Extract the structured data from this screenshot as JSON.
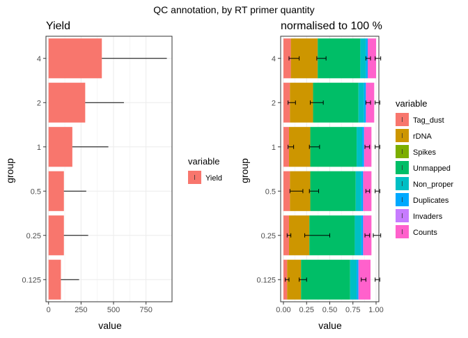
{
  "main_title": "QC annotation, by RT primer quantity",
  "colors": {
    "yield": "#F8766D",
    "Tag_dust": "#F8766D",
    "rDNA": "#CD9600",
    "Spikes": "#7CAE00",
    "Unmapped": "#00BE67",
    "Non_proper": "#00BFC4",
    "Duplicates": "#00A9FF",
    "Invaders": "#C77CFF",
    "Counts": "#FF61CC"
  },
  "chart_data": [
    {
      "type": "bar",
      "orientation": "horizontal",
      "title": "Yield",
      "xlabel": "value",
      "ylabel": "group",
      "xlim": [
        -20,
        950
      ],
      "xticks": [
        "0",
        "250",
        "500",
        "750"
      ],
      "xtick_values": [
        0,
        250,
        500,
        750
      ],
      "categories": [
        "0.125",
        "0.25",
        "0.5",
        "1",
        "2",
        "4"
      ],
      "grid": true,
      "legend": {
        "title": "variable",
        "position": "right",
        "entries": [
          "Yield"
        ]
      },
      "series": [
        {
          "name": "Yield",
          "values": [
            95,
            118,
            118,
            183,
            282,
            410
          ],
          "error_low": [
            95,
            118,
            118,
            183,
            282,
            410
          ],
          "error_high": [
            235,
            305,
            290,
            460,
            580,
            910
          ]
        }
      ]
    },
    {
      "type": "bar",
      "orientation": "horizontal",
      "stacked": true,
      "title": "normalised to 100 %",
      "xlabel": "value",
      "ylabel": "group",
      "xlim": [
        -0.03,
        1.03
      ],
      "xticks": [
        "0.00",
        "0.25",
        "0.50",
        "0.75",
        "1.00"
      ],
      "xtick_values": [
        0,
        0.25,
        0.5,
        0.75,
        1.0
      ],
      "categories": [
        "0.125",
        "0.25",
        "0.5",
        "1",
        "2",
        "4"
      ],
      "grid": true,
      "legend": {
        "title": "variable",
        "position": "right",
        "entries": [
          "Tag_dust",
          "rDNA",
          "Spikes",
          "Unmapped",
          "Non_proper",
          "Duplicates",
          "Invaders",
          "Counts"
        ]
      },
      "series": [
        {
          "name": "Tag_dust",
          "values": [
            0.04,
            0.06,
            0.07,
            0.06,
            0.07,
            0.08
          ]
        },
        {
          "name": "rDNA",
          "values": [
            0.15,
            0.22,
            0.22,
            0.23,
            0.25,
            0.29
          ]
        },
        {
          "name": "Spikes",
          "values": [
            0.0,
            0.0,
            0.0,
            0.0,
            0.0,
            0.0
          ]
        },
        {
          "name": "Unmapped",
          "values": [
            0.53,
            0.49,
            0.49,
            0.5,
            0.49,
            0.46
          ]
        },
        {
          "name": "Non_proper",
          "values": [
            0.07,
            0.07,
            0.06,
            0.06,
            0.06,
            0.06
          ]
        },
        {
          "name": "Duplicates",
          "values": [
            0.02,
            0.02,
            0.02,
            0.02,
            0.02,
            0.02
          ]
        },
        {
          "name": "Invaders",
          "values": [
            0.0,
            0.0,
            0.0,
            0.0,
            0.0,
            0.0
          ]
        },
        {
          "name": "Counts",
          "values": [
            0.13,
            0.09,
            0.09,
            0.08,
            0.09,
            0.09
          ]
        }
      ],
      "error_bars": [
        {
          "category": "0.125",
          "ranges": [
            [
              0.02,
              0.06
            ],
            [
              0.17,
              0.25
            ],
            [
              0.84,
              0.89
            ],
            [
              0.99,
              1.04
            ]
          ]
        },
        {
          "category": "0.25",
          "ranges": [
            [
              0.04,
              0.08
            ],
            [
              0.23,
              0.5
            ],
            [
              0.88,
              0.93
            ],
            [
              0.97,
              1.05
            ]
          ]
        },
        {
          "category": "0.5",
          "ranges": [
            [
              0.07,
              0.21
            ],
            [
              0.28,
              0.38
            ],
            [
              0.89,
              0.93
            ],
            [
              0.99,
              1.04
            ]
          ]
        },
        {
          "category": "1",
          "ranges": [
            [
              0.05,
              0.11
            ],
            [
              0.28,
              0.39
            ],
            [
              0.88,
              0.93
            ],
            [
              0.99,
              1.04
            ]
          ]
        },
        {
          "category": "2",
          "ranges": [
            [
              0.05,
              0.13
            ],
            [
              0.29,
              0.43
            ],
            [
              0.89,
              0.94
            ],
            [
              0.99,
              1.04
            ]
          ]
        },
        {
          "category": "4",
          "ranges": [
            [
              0.06,
              0.17
            ],
            [
              0.36,
              0.46
            ],
            [
              0.89,
              0.94
            ],
            [
              0.99,
              1.05
            ]
          ]
        }
      ]
    }
  ]
}
